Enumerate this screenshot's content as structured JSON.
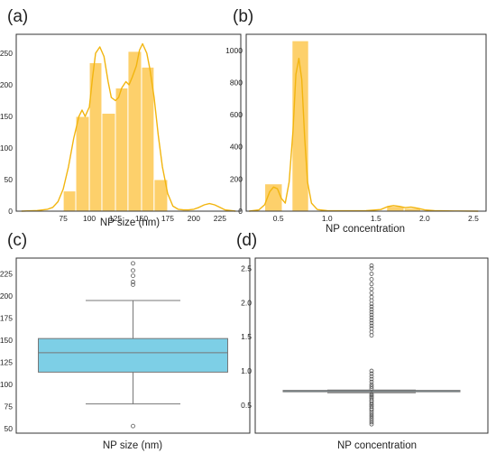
{
  "colors": {
    "hist_fill": "#fdd06b",
    "hist_edge": "#ffffff",
    "kde_line": "#f2b50f",
    "box_fill": "#7dcfe6",
    "box_edge": "#777777",
    "frame": "#333333"
  },
  "chart_data": [
    {
      "panel_label": "(a)",
      "type": "bar",
      "subtype": "histogram-with-kde",
      "xlabel": "NP size (nm)",
      "ylabel": "",
      "xlim": [
        30,
        245
      ],
      "ylim": [
        0,
        280
      ],
      "xticks": [
        75,
        100,
        125,
        150,
        175,
        200,
        225
      ],
      "yticks": [
        0,
        50,
        100,
        150,
        200,
        250
      ],
      "bins": [
        {
          "x0": 75,
          "x1": 87,
          "count": 32
        },
        {
          "x0": 87,
          "x1": 100,
          "count": 150
        },
        {
          "x0": 100,
          "x1": 112,
          "count": 235
        },
        {
          "x0": 112,
          "x1": 125,
          "count": 155
        },
        {
          "x0": 125,
          "x1": 137,
          "count": 195
        },
        {
          "x0": 137,
          "x1": 150,
          "count": 253
        },
        {
          "x0": 150,
          "x1": 162,
          "count": 228
        },
        {
          "x0": 162,
          "x1": 175,
          "count": 50
        }
      ],
      "kde": {
        "x": [
          35,
          50,
          60,
          65,
          70,
          75,
          80,
          85,
          90,
          93,
          96,
          100,
          103,
          106,
          110,
          114,
          118,
          121,
          125,
          128,
          131,
          135,
          138,
          141,
          145,
          148,
          151,
          155,
          158,
          162,
          166,
          170,
          175,
          180,
          185,
          190,
          195,
          200,
          205,
          210,
          215,
          220,
          225,
          230,
          240
        ],
        "y": [
          0,
          1,
          3,
          6,
          15,
          35,
          70,
          115,
          150,
          160,
          150,
          165,
          210,
          250,
          260,
          245,
          205,
          180,
          175,
          180,
          195,
          205,
          200,
          212,
          230,
          255,
          265,
          250,
          225,
          180,
          120,
          70,
          28,
          8,
          3,
          2,
          2,
          3,
          6,
          10,
          12,
          10,
          6,
          2,
          0
        ]
      },
      "grid": false,
      "legend": "none"
    },
    {
      "panel_label": "(b)",
      "type": "bar",
      "subtype": "histogram-with-kde",
      "xlabel": "NP concentration",
      "ylabel": "",
      "xlim": [
        0.17,
        2.63
      ],
      "ylim": [
        0,
        1100
      ],
      "xticks": [
        0.5,
        1.0,
        1.5,
        2.0,
        2.5
      ],
      "yticks": [
        0,
        200,
        400,
        600,
        800,
        1000
      ],
      "bins": [
        {
          "x0": 0.36,
          "x1": 0.54,
          "count": 170
        },
        {
          "x0": 0.64,
          "x1": 0.81,
          "count": 1060
        },
        {
          "x0": 1.61,
          "x1": 1.79,
          "count": 30
        },
        {
          "x0": 1.79,
          "x1": 1.96,
          "count": 18
        }
      ],
      "kde": {
        "x": [
          0.2,
          0.3,
          0.36,
          0.41,
          0.45,
          0.49,
          0.53,
          0.57,
          0.61,
          0.65,
          0.68,
          0.71,
          0.74,
          0.77,
          0.8,
          0.84,
          0.9,
          1.0,
          1.2,
          1.4,
          1.55,
          1.62,
          1.68,
          1.74,
          1.8,
          1.86,
          1.93,
          2.0,
          2.1,
          2.3,
          2.55
        ],
        "y": [
          0,
          8,
          40,
          120,
          150,
          140,
          80,
          50,
          180,
          500,
          850,
          950,
          820,
          450,
          180,
          50,
          10,
          3,
          2,
          3,
          10,
          28,
          35,
          30,
          22,
          25,
          18,
          8,
          3,
          1,
          0
        ]
      },
      "grid": false,
      "legend": "none"
    },
    {
      "panel_label": "(c)",
      "type": "box",
      "xlabel": "NP size (nm)",
      "ylabel": "",
      "ylim": [
        45,
        243
      ],
      "yticks": [
        50,
        75,
        100,
        125,
        150,
        175,
        200,
        225
      ],
      "box": {
        "whisker_low": 78,
        "q1": 114,
        "median": 136,
        "q3": 152,
        "whisker_high": 195
      },
      "outliers": [
        53,
        213,
        216,
        223,
        229,
        237
      ],
      "grid": false,
      "legend": "none"
    },
    {
      "panel_label": "(d)",
      "type": "box",
      "xlabel": "NP concentration",
      "ylabel": "",
      "ylim": [
        0.09,
        2.65
      ],
      "yticks": [
        0.5,
        1.0,
        1.5,
        2.0,
        2.5
      ],
      "box": {
        "whisker_low": 0.68,
        "q1": 0.705,
        "median": 0.71,
        "q3": 0.715,
        "whisker_high": 0.72
      },
      "outliers": [
        0.22,
        0.25,
        0.28,
        0.31,
        0.34,
        0.37,
        0.4,
        0.43,
        0.45,
        0.48,
        0.5,
        0.52,
        0.55,
        0.57,
        0.6,
        0.62,
        0.64,
        0.66,
        0.74,
        0.77,
        0.8,
        0.84,
        0.88,
        0.92,
        0.96,
        1.0,
        1.52,
        1.57,
        1.62,
        1.66,
        1.7,
        1.74,
        1.78,
        1.82,
        1.86,
        1.9,
        1.94,
        1.98,
        2.03,
        2.08,
        2.14,
        2.2,
        2.27,
        2.34,
        2.42,
        2.5,
        2.54
      ],
      "grid": false,
      "legend": "none"
    }
  ]
}
